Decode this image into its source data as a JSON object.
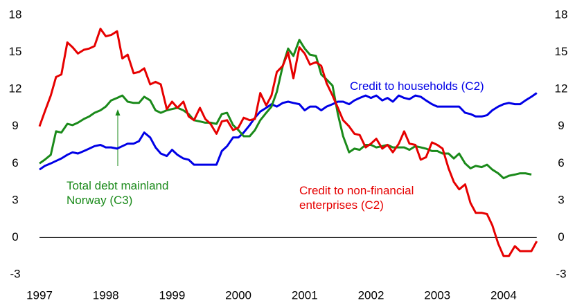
{
  "chart_data": {
    "type": "line",
    "x": [
      1997.0,
      1997.08,
      1997.17,
      1997.25,
      1997.33,
      1997.42,
      1997.5,
      1997.58,
      1997.67,
      1997.75,
      1997.83,
      1997.92,
      1998.0,
      1998.08,
      1998.17,
      1998.25,
      1998.33,
      1998.42,
      1998.5,
      1998.58,
      1998.67,
      1998.75,
      1998.83,
      1998.92,
      1999.0,
      1999.08,
      1999.17,
      1999.25,
      1999.33,
      1999.42,
      1999.5,
      1999.58,
      1999.67,
      1999.75,
      1999.83,
      1999.92,
      2000.0,
      2000.08,
      2000.17,
      2000.25,
      2000.33,
      2000.42,
      2000.5,
      2000.58,
      2000.67,
      2000.75,
      2000.83,
      2000.92,
      2001.0,
      2001.08,
      2001.17,
      2001.25,
      2001.33,
      2001.42,
      2001.5,
      2001.58,
      2001.67,
      2001.75,
      2001.83,
      2001.92,
      2002.0,
      2002.08,
      2002.17,
      2002.25,
      2002.33,
      2002.42,
      2002.5,
      2002.58,
      2002.67,
      2002.75,
      2002.83,
      2002.92,
      2003.0,
      2003.08,
      2003.17,
      2003.25,
      2003.33,
      2003.42,
      2003.5,
      2003.58,
      2003.67,
      2003.75,
      2003.83,
      2003.92,
      2004.0,
      2004.08,
      2004.17,
      2004.25,
      2004.33,
      2004.42,
      2004.5
    ],
    "series": [
      {
        "name": "Credit to households (C2)",
        "color": "#0000e6",
        "values": [
          5.5,
          5.8,
          6.0,
          6.2,
          6.4,
          6.7,
          6.9,
          6.8,
          7.0,
          7.2,
          7.4,
          7.5,
          7.3,
          7.3,
          7.2,
          7.4,
          7.6,
          7.6,
          7.8,
          8.5,
          8.1,
          7.3,
          6.8,
          6.6,
          7.1,
          6.7,
          6.4,
          6.3,
          5.9,
          5.9,
          5.9,
          5.9,
          5.9,
          7.0,
          7.4,
          8.1,
          8.1,
          8.5,
          9.1,
          9.7,
          10.2,
          10.5,
          10.8,
          10.6,
          10.9,
          11.0,
          10.9,
          10.8,
          10.3,
          10.6,
          10.6,
          10.3,
          10.6,
          10.8,
          11.0,
          11.0,
          10.8,
          11.1,
          11.3,
          11.5,
          11.3,
          11.5,
          11.1,
          11.3,
          11.0,
          11.5,
          11.3,
          11.2,
          11.5,
          11.4,
          11.1,
          10.8,
          10.6,
          10.6,
          10.6,
          10.6,
          10.6,
          10.1,
          10.0,
          9.8,
          9.8,
          9.9,
          10.3,
          10.6,
          10.8,
          10.9,
          10.8,
          10.8,
          11.1,
          11.4,
          11.7
        ]
      },
      {
        "name": "Total debt mainland Norway (C3)",
        "color": "#1a8a1a",
        "values": [
          6.0,
          6.3,
          6.7,
          8.6,
          8.5,
          9.2,
          9.1,
          9.3,
          9.6,
          9.8,
          10.1,
          10.3,
          10.6,
          11.1,
          11.3,
          11.5,
          11.0,
          10.9,
          10.9,
          11.4,
          11.1,
          10.3,
          10.1,
          10.3,
          10.4,
          10.5,
          10.3,
          10.0,
          9.5,
          9.4,
          9.3,
          9.3,
          9.2,
          10.0,
          10.1,
          9.1,
          8.7,
          8.2,
          8.2,
          8.7,
          9.5,
          10.1,
          10.6,
          11.8,
          13.9,
          15.3,
          14.7,
          16.0,
          15.3,
          14.8,
          14.7,
          13.2,
          12.8,
          12.3,
          10.0,
          8.2,
          6.9,
          7.2,
          7.1,
          7.5,
          7.5,
          7.3,
          7.4,
          7.5,
          7.3,
          7.3,
          7.3,
          7.1,
          7.4,
          7.3,
          7.2,
          7.0,
          7.0,
          6.8,
          6.8,
          6.4,
          6.8,
          6.0,
          5.6,
          5.8,
          5.7,
          5.9,
          5.5,
          5.2,
          4.8,
          5.0,
          5.1,
          5.2,
          5.2,
          5.1,
          null
        ]
      },
      {
        "name": "Credit to non-financial enterprises (C2)",
        "color": "#e60000",
        "values": [
          9.0,
          10.2,
          11.5,
          13.0,
          13.2,
          15.8,
          15.4,
          14.9,
          15.2,
          15.3,
          15.5,
          16.9,
          16.3,
          16.4,
          16.7,
          14.5,
          14.8,
          13.3,
          13.4,
          13.7,
          12.4,
          12.6,
          12.4,
          10.4,
          11.0,
          10.5,
          11.0,
          9.8,
          9.5,
          10.5,
          9.6,
          9.2,
          8.4,
          9.4,
          9.5,
          8.7,
          8.9,
          9.7,
          9.5,
          9.6,
          11.7,
          10.7,
          11.5,
          13.4,
          13.9,
          15.0,
          12.9,
          15.4,
          14.9,
          14.0,
          14.2,
          13.9,
          12.5,
          11.5,
          10.5,
          9.5,
          9.0,
          8.4,
          8.3,
          7.3,
          7.6,
          8.0,
          7.2,
          7.5,
          6.9,
          7.6,
          8.6,
          7.6,
          7.5,
          6.3,
          6.5,
          7.7,
          7.5,
          7.2,
          5.6,
          4.5,
          3.9,
          4.3,
          2.8,
          2.0,
          2.0,
          1.9,
          1.0,
          -0.5,
          -1.5,
          -1.5,
          -0.7,
          -1.1,
          -1.1,
          -1.1,
          -0.3
        ]
      }
    ],
    "xlim": [
      1997,
      2004.5
    ],
    "xticks": [
      1997,
      1998,
      1999,
      2000,
      2001,
      2002,
      2003,
      2004
    ],
    "ylim": [
      -3,
      18
    ],
    "yticks": [
      -3,
      0,
      3,
      6,
      9,
      12,
      15,
      18
    ],
    "y2lim": [
      -3,
      18
    ],
    "y2ticks": [
      -3,
      0,
      3,
      6,
      9,
      12,
      15,
      18
    ]
  }
}
